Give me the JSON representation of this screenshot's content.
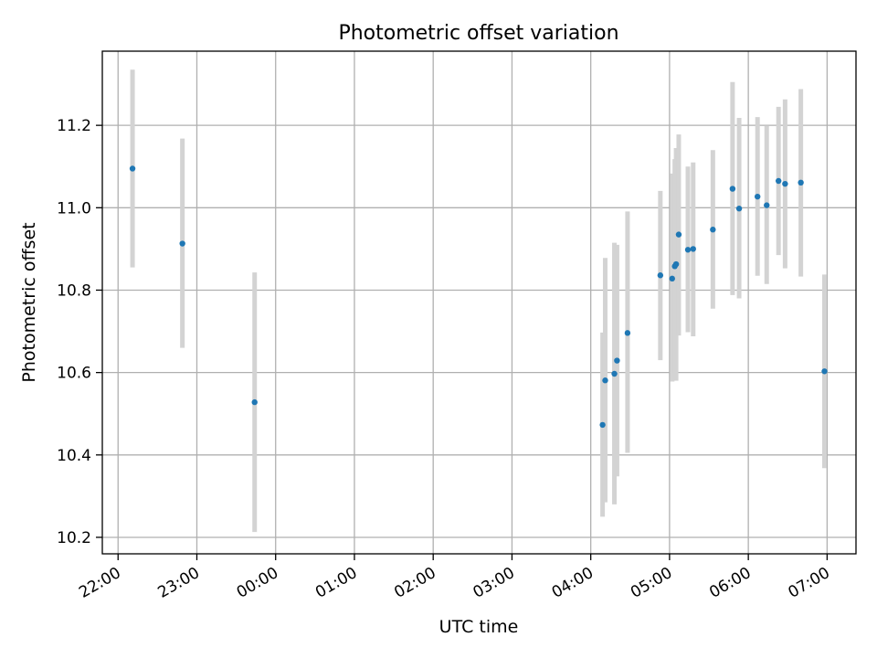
{
  "chart_data": {
    "type": "scatter",
    "title": "Photometric offset variation",
    "xlabel": "UTC time",
    "ylabel": "Photometric offset",
    "x_tick_labels": [
      "22:00",
      "23:00",
      "00:00",
      "01:00",
      "02:00",
      "03:00",
      "04:00",
      "05:00",
      "06:00",
      "07:00"
    ],
    "y_ticks": [
      10.2,
      10.4,
      10.6,
      10.8,
      11.0,
      11.2
    ],
    "xlim": [
      "21:48",
      "07:22"
    ],
    "ylim": [
      10.16,
      11.38
    ],
    "grid": true,
    "colors": {
      "points": "#1f77b4",
      "error_bars": "#d3d3d3",
      "grid": "#b0b0b0"
    },
    "series": [
      {
        "points": [
          {
            "x": "22:11",
            "y": 11.095,
            "ylo": 10.855,
            "yhi": 11.335
          },
          {
            "x": "22:49",
            "y": 10.913,
            "ylo": 10.66,
            "yhi": 11.168
          },
          {
            "x": "23:44",
            "y": 10.528,
            "ylo": 10.213,
            "yhi": 10.843
          },
          {
            "x": "04:09",
            "y": 10.473,
            "ylo": 10.25,
            "yhi": 10.697
          },
          {
            "x": "04:11",
            "y": 10.581,
            "ylo": 10.285,
            "yhi": 10.878
          },
          {
            "x": "04:18",
            "y": 10.597,
            "ylo": 10.28,
            "yhi": 10.915
          },
          {
            "x": "04:20",
            "y": 10.629,
            "ylo": 10.348,
            "yhi": 10.91
          },
          {
            "x": "04:28",
            "y": 10.696,
            "ylo": 10.405,
            "yhi": 10.991
          },
          {
            "x": "04:53",
            "y": 10.836,
            "ylo": 10.63,
            "yhi": 11.041
          },
          {
            "x": "05:02",
            "y": 10.828,
            "ylo": 10.578,
            "yhi": 11.083
          },
          {
            "x": "05:04",
            "y": 10.858,
            "ylo": 10.598,
            "yhi": 11.118
          },
          {
            "x": "05:05",
            "y": 10.863,
            "ylo": 10.58,
            "yhi": 11.145
          },
          {
            "x": "05:07",
            "y": 10.935,
            "ylo": 10.69,
            "yhi": 11.178
          },
          {
            "x": "05:14",
            "y": 10.898,
            "ylo": 10.698,
            "yhi": 11.1
          },
          {
            "x": "05:18",
            "y": 10.9,
            "ylo": 10.688,
            "yhi": 11.11
          },
          {
            "x": "05:33",
            "y": 10.947,
            "ylo": 10.755,
            "yhi": 11.14
          },
          {
            "x": "05:48",
            "y": 11.046,
            "ylo": 10.788,
            "yhi": 11.305
          },
          {
            "x": "05:53",
            "y": 10.998,
            "ylo": 10.78,
            "yhi": 11.218
          },
          {
            "x": "06:07",
            "y": 11.027,
            "ylo": 10.835,
            "yhi": 11.22
          },
          {
            "x": "06:14",
            "y": 11.006,
            "ylo": 10.815,
            "yhi": 11.198
          },
          {
            "x": "06:23",
            "y": 11.065,
            "ylo": 10.885,
            "yhi": 11.245
          },
          {
            "x": "06:28",
            "y": 11.058,
            "ylo": 10.853,
            "yhi": 11.263
          },
          {
            "x": "06:40",
            "y": 11.061,
            "ylo": 10.833,
            "yhi": 11.288
          },
          {
            "x": "06:58",
            "y": 10.603,
            "ylo": 10.368,
            "yhi": 10.838
          }
        ]
      }
    ]
  }
}
